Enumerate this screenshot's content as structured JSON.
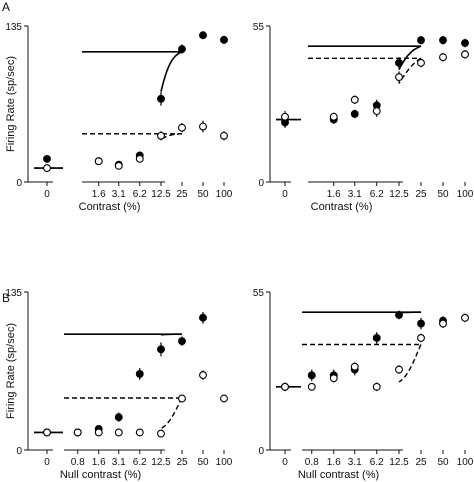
{
  "panel_labels": [
    "A",
    "B"
  ],
  "chart_data": [
    {
      "type": "scatter",
      "panel": "A",
      "xlabel": "Contrast (%)",
      "ylabel": "Firing Rate (sp/sec)",
      "ylim": [
        0,
        135
      ],
      "ytick_labels": [
        "0",
        "135"
      ],
      "xtick_labels": [
        "0",
        "1.6",
        "3.1",
        "6.2",
        "12.5",
        "25",
        "50",
        "100"
      ],
      "series": [
        {
          "style": "filled",
          "points": [
            [
              0,
              20,
              0
            ],
            [
              1.6,
              18,
              2
            ],
            [
              3.1,
              15,
              2
            ],
            [
              6.2,
              23,
              3
            ],
            [
              12.5,
              72,
              6
            ],
            [
              25,
              115,
              4
            ],
            [
              50,
              127,
              3
            ],
            [
              100,
              123,
              3
            ]
          ]
        },
        {
          "style": "open",
          "points": [
            [
              0,
              12,
              0
            ],
            [
              1.6,
              18,
              2
            ],
            [
              3.1,
              14,
              2
            ],
            [
              6.2,
              20,
              3
            ],
            [
              12.5,
              40,
              4
            ],
            [
              25,
              47,
              4
            ],
            [
              50,
              48,
              5
            ],
            [
              100,
              40,
              4
            ]
          ]
        }
      ],
      "fits": [
        {
          "style": "solid",
          "baseline": 12,
          "rmax": 103,
          "c50": 11,
          "n": 4.6
        },
        {
          "style": "dashed",
          "baseline": 12,
          "rmax": 30,
          "c50": 9,
          "n": 4.6
        }
      ]
    },
    {
      "type": "scatter",
      "panel": "A",
      "xlabel": "Contrast (%)",
      "ylabel": "",
      "ylim": [
        0,
        55
      ],
      "ytick_labels": [
        "0",
        "55"
      ],
      "xtick_labels": [
        "0",
        "1.6",
        "3.1",
        "6.2",
        "12.5",
        "25",
        "50",
        "100"
      ],
      "series": [
        {
          "style": "filled",
          "points": [
            [
              0,
              21,
              2
            ],
            [
              1.6,
              22,
              1.5
            ],
            [
              3.1,
              24,
              1.5
            ],
            [
              6.2,
              27,
              2
            ],
            [
              12.5,
              42,
              2
            ],
            [
              25,
              50,
              1.5
            ],
            [
              50,
              50,
              1.5
            ],
            [
              100,
              49,
              1.5
            ]
          ]
        },
        {
          "style": "open",
          "points": [
            [
              0,
              23,
              2
            ],
            [
              1.6,
              23,
              1.5
            ],
            [
              3.1,
              29,
              1.5
            ],
            [
              6.2,
              25,
              2
            ],
            [
              12.5,
              37,
              2
            ],
            [
              25,
              42,
              1.5
            ],
            [
              50,
              44,
              1.5
            ],
            [
              100,
              45,
              1.5
            ]
          ]
        }
      ],
      "fits": [
        {
          "style": "solid",
          "baseline": 22,
          "rmax": 27,
          "c50": 10.5,
          "n": 3.6
        },
        {
          "style": "dashed",
          "baseline": 22,
          "rmax": 24,
          "c50": 12,
          "n": 3
        }
      ]
    },
    {
      "type": "scatter",
      "panel": "B",
      "xlabel": "Null contrast (%)",
      "ylabel": "Firing Rate (sp/sec)",
      "ylim": [
        0,
        135
      ],
      "ytick_labels": [
        "0",
        "135"
      ],
      "xtick_labels": [
        "0",
        "0.8",
        "1.6",
        "3.1",
        "6.2",
        "12.5",
        "25",
        "50",
        "100"
      ],
      "series": [
        {
          "style": "filled",
          "points": [
            [
              0,
              15,
              0
            ],
            [
              0.8,
              15,
              0
            ],
            [
              1.6,
              18,
              2
            ],
            [
              3.1,
              28,
              4
            ],
            [
              6.2,
              65,
              5
            ],
            [
              12.5,
              86,
              6
            ],
            [
              25,
              93,
              4
            ],
            [
              50,
              113,
              5
            ]
          ]
        },
        {
          "style": "open",
          "points": [
            [
              0,
              15,
              0
            ],
            [
              0.8,
              15,
              0
            ],
            [
              1.6,
              15,
              0
            ],
            [
              3.1,
              15,
              0
            ],
            [
              6.2,
              15,
              0
            ],
            [
              12.5,
              14,
              0
            ],
            [
              25,
              44,
              3
            ],
            [
              50,
              64,
              4
            ],
            [
              100,
              44,
              3
            ]
          ]
        }
      ],
      "fits": [
        {
          "style": "solid",
          "baseline": 15,
          "rmax": 84,
          "c50": 4.7,
          "n": 5
        },
        {
          "style": "dashed",
          "baseline": 15,
          "rmax": 46,
          "c50": 22,
          "n": 4.5
        }
      ]
    },
    {
      "type": "scatter",
      "panel": "B",
      "xlabel": "Null contrast (%)",
      "ylabel": "",
      "ylim": [
        0,
        55
      ],
      "ytick_labels": [
        "0",
        "55"
      ],
      "xtick_labels": [
        "0",
        "0.8",
        "1.6",
        "3.1",
        "6.2",
        "12.5",
        "25",
        "50",
        "100"
      ],
      "series": [
        {
          "style": "filled",
          "points": [
            [
              0,
              22,
              1.5
            ],
            [
              0.8,
              26,
              2
            ],
            [
              1.6,
              26,
              2
            ],
            [
              3.1,
              28,
              2
            ],
            [
              6.2,
              39,
              2
            ],
            [
              12.5,
              47,
              1.5
            ],
            [
              25,
              44,
              2
            ],
            [
              50,
              45,
              1.5
            ]
          ]
        },
        {
          "style": "open",
          "points": [
            [
              0,
              22,
              1.5
            ],
            [
              0.8,
              22,
              0
            ],
            [
              1.6,
              25,
              1.5
            ],
            [
              3.1,
              29,
              1.5
            ],
            [
              6.2,
              22,
              1.5
            ],
            [
              12.5,
              28,
              1.5
            ],
            [
              25,
              39,
              1.5
            ],
            [
              50,
              44,
              1.5
            ],
            [
              100,
              46,
              1.5
            ]
          ]
        }
      ],
      "fits": [
        {
          "style": "solid",
          "baseline": 22,
          "rmax": 26,
          "c50": 4,
          "n": 4
        },
        {
          "style": "dashed",
          "baseline": 22,
          "rmax": 23,
          "c50": 22,
          "n": 4.5
        }
      ]
    }
  ]
}
